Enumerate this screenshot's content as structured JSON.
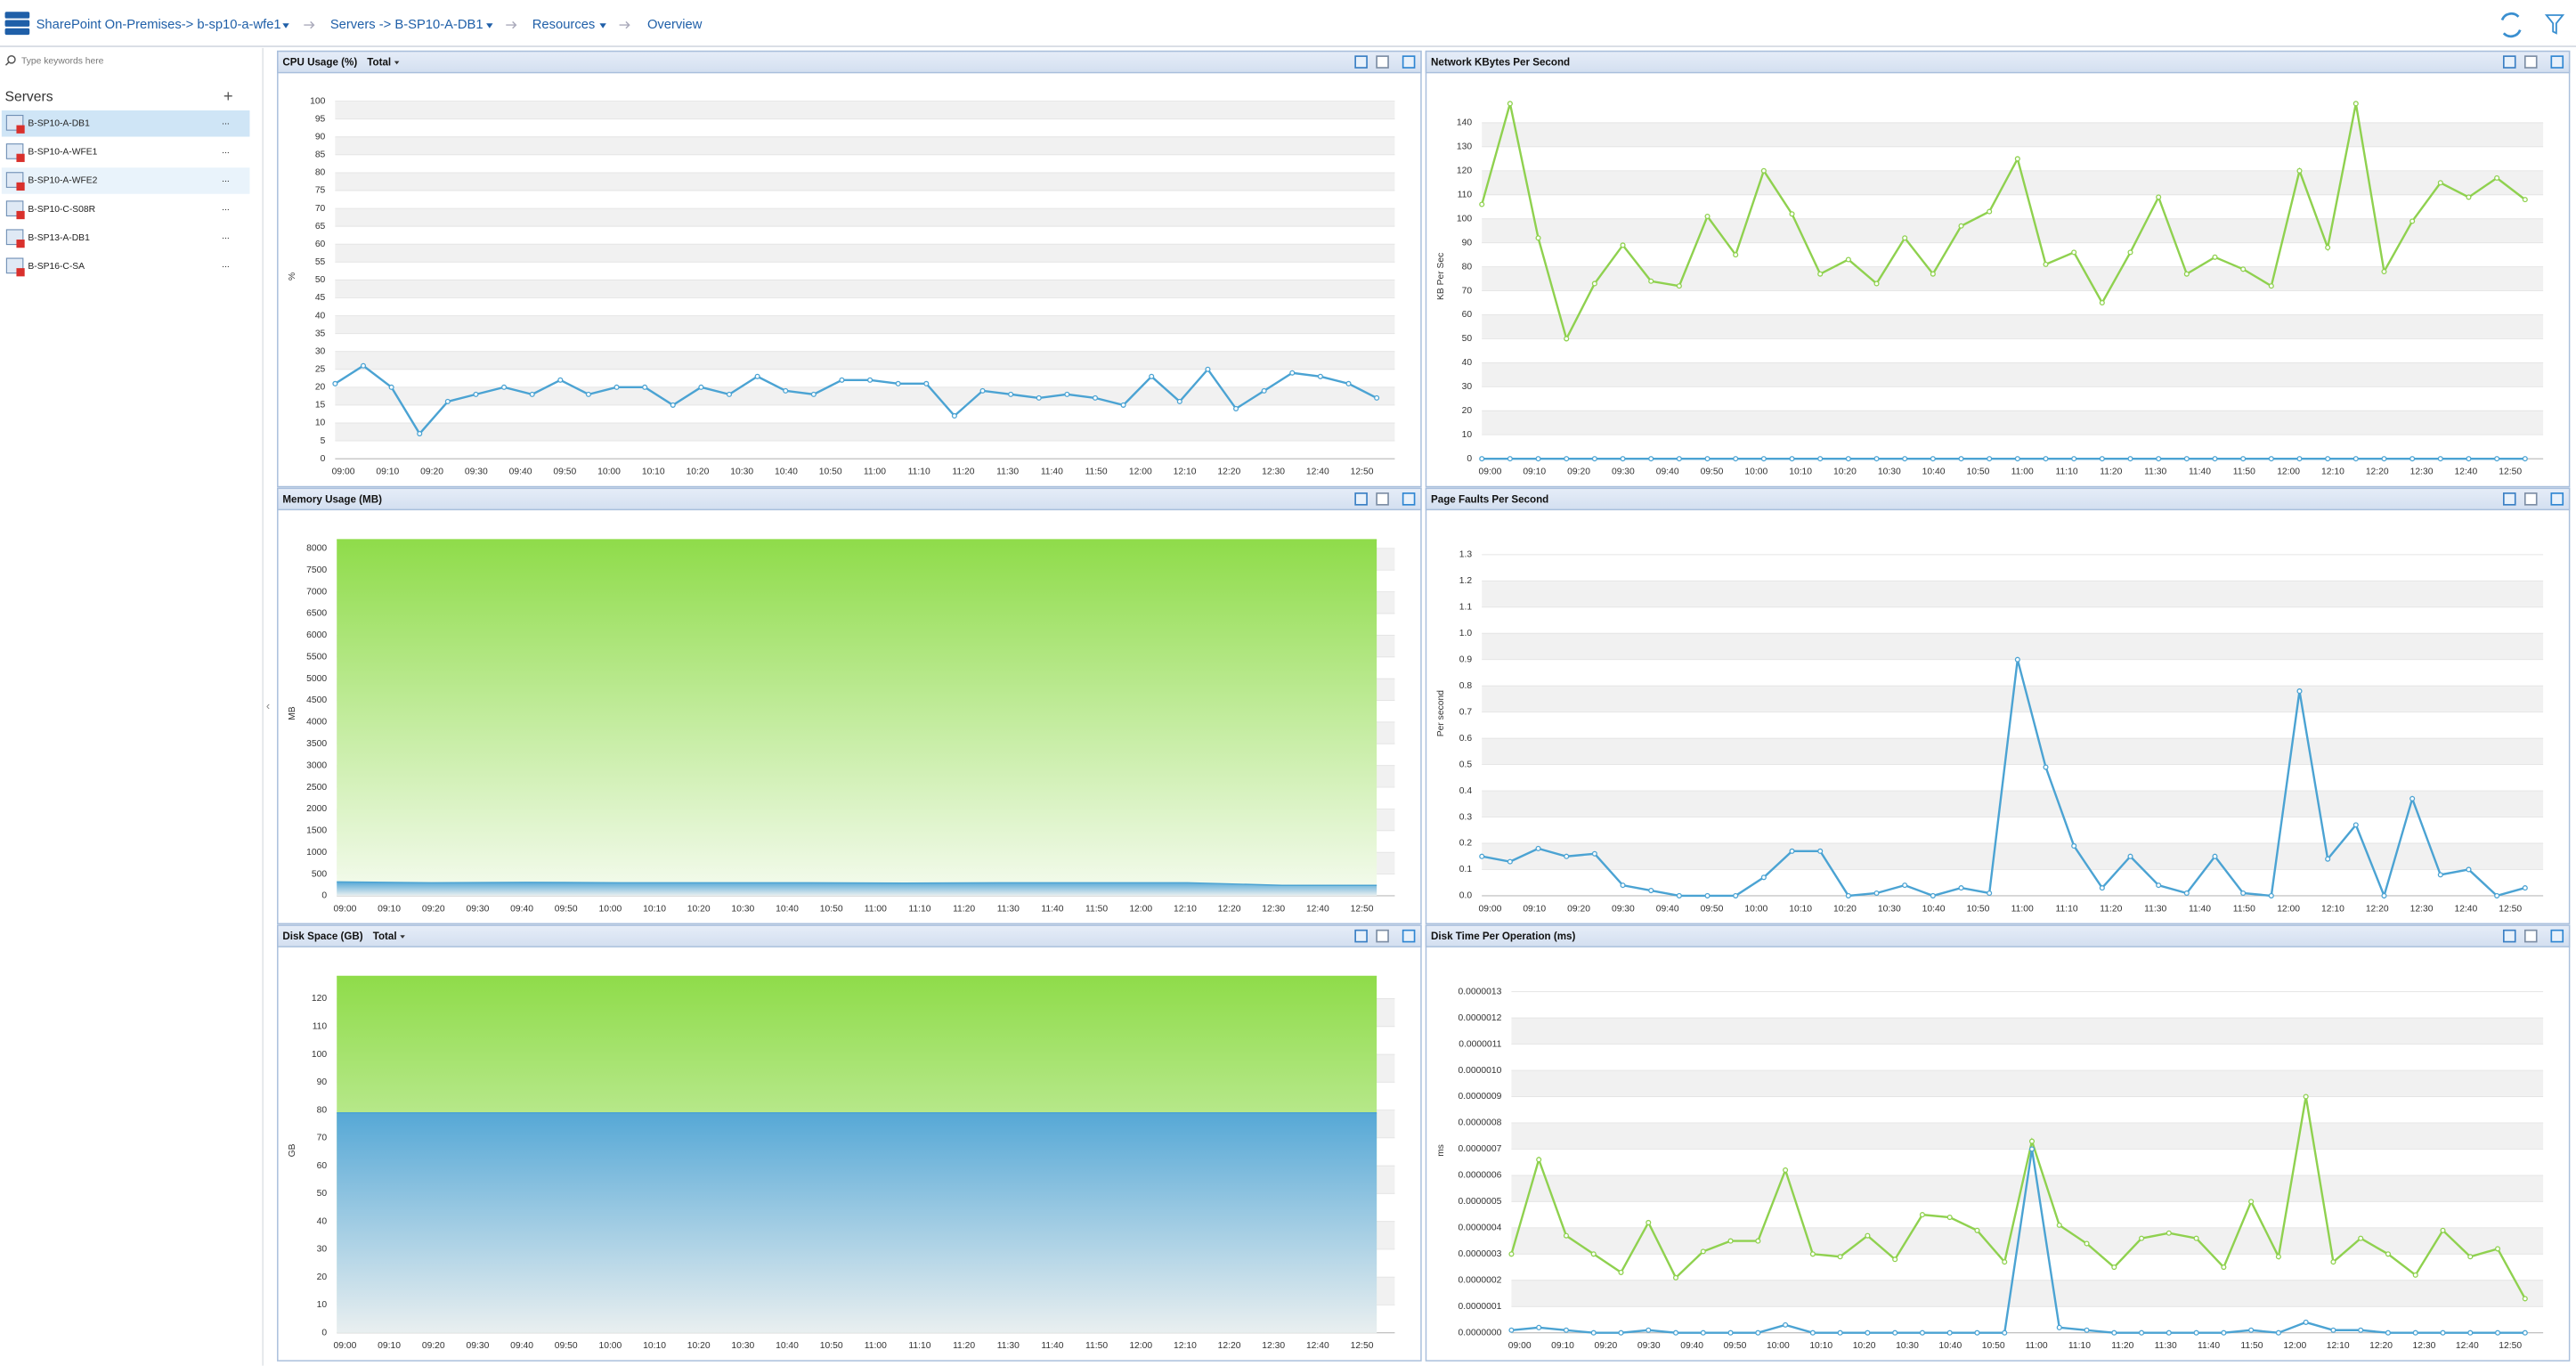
{
  "header": {
    "breadcrumbs": [
      "SharePoint On-Premises-> b-sp10-a-wfe1",
      "Servers -> B-SP10-A-DB1",
      "Resources",
      "Overview"
    ]
  },
  "sidebar": {
    "search_placeholder": "Type keywords here",
    "title": "Servers",
    "add": "+",
    "more": "...",
    "servers": [
      "B-SP10-A-DB1",
      "B-SP10-A-WFE1",
      "B-SP10-A-WFE2",
      "B-SP10-C-S08R",
      "B-SP13-A-DB1",
      "B-SP16-C-SA"
    ]
  },
  "time_labels": [
    "09:00",
    "09:10",
    "09:20",
    "09:30",
    "09:40",
    "09:50",
    "10:00",
    "10:10",
    "10:20",
    "10:30",
    "10:40",
    "10:50",
    "11:00",
    "11:10",
    "11:20",
    "11:30",
    "11:40",
    "11:50",
    "12:00",
    "12:10",
    "12:20",
    "12:30",
    "12:40",
    "12:50"
  ],
  "panels": [
    {
      "title": "CPU Usage (%)",
      "dropdown": "Total",
      "chart": {
        "type": "line",
        "y_label": "%",
        "ylim": [
          0,
          102
        ],
        "yticks": [
          0,
          5,
          10,
          15,
          20,
          25,
          30,
          35,
          40,
          45,
          50,
          55,
          60,
          65,
          70,
          75,
          80,
          85,
          90,
          95,
          100
        ],
        "series": [
          {
            "color": "#4ba3d3",
            "values": [
              21,
              26,
              20,
              7,
              16,
              18,
              20,
              18,
              22,
              18,
              20,
              20,
              15,
              20,
              18,
              23,
              19,
              18,
              22,
              22,
              21,
              21,
              12,
              19,
              18,
              17,
              18,
              17,
              15,
              23,
              16,
              25,
              14,
              19,
              24,
              23,
              21,
              17
            ]
          }
        ]
      }
    },
    {
      "title": "Network KBytes Per Second",
      "chart": {
        "type": "line",
        "y_label": "KB Per Sec",
        "ylim": [
          0,
          152
        ],
        "yticks": [
          0,
          10,
          20,
          30,
          40,
          50,
          60,
          70,
          80,
          90,
          100,
          110,
          120,
          130,
          140
        ],
        "series": [
          {
            "color": "#8fd14f",
            "values": [
              106,
              148,
              92,
              50,
              73,
              89,
              74,
              72,
              101,
              85,
              120,
              102,
              77,
              83,
              73,
              92,
              77,
              97,
              103,
              125,
              81,
              86,
              65,
              86,
              109,
              77,
              84,
              79,
              72,
              120,
              88,
              148,
              78,
              99,
              115,
              109,
              117,
              108
            ]
          },
          {
            "color": "#4ba3d3",
            "values": [
              0,
              0,
              0,
              0,
              0,
              0,
              0,
              0,
              0,
              0,
              0,
              0,
              0,
              0,
              0,
              0,
              0,
              0,
              0,
              0,
              0,
              0,
              0,
              0,
              0,
              0,
              0,
              0,
              0,
              0,
              0,
              0,
              0,
              0,
              0,
              0,
              0,
              0
            ]
          }
        ]
      }
    },
    {
      "title": "Memory Usage (MB)",
      "chart": {
        "type": "area",
        "y_label": "MB",
        "ylim": [
          0,
          8400
        ],
        "yticks": [
          0,
          500,
          1000,
          1500,
          2000,
          2500,
          3000,
          3500,
          4000,
          4500,
          5000,
          5500,
          6000,
          6500,
          7000,
          7500,
          8000
        ],
        "series": [
          {
            "color": "#8fdc4a",
            "values": [
              8200,
              8200,
              8200,
              8200,
              8200,
              8200,
              8200,
              8200,
              8200,
              8200,
              8200,
              8200
            ]
          },
          {
            "color": "#4ba3d3",
            "values": [
              320,
              300,
              310,
              300,
              300,
              300,
              290,
              300,
              300,
              300,
              240,
              240
            ]
          }
        ]
      }
    },
    {
      "title": "Page Faults Per Second",
      "chart": {
        "type": "line",
        "y_label": "Per second",
        "ylim": [
          0,
          1.39
        ],
        "yticks": [
          {
            "value": 0,
            "label": "0.0"
          },
          {
            "value": 0.1,
            "label": "0.1"
          },
          {
            "value": 0.2,
            "label": "0.2"
          },
          {
            "value": 0.3,
            "label": "0.3"
          },
          {
            "value": 0.4,
            "label": "0.4"
          },
          {
            "value": 0.5,
            "label": "0.5"
          },
          {
            "value": 0.6,
            "label": "0.6"
          },
          {
            "value": 0.7,
            "label": "0.7"
          },
          {
            "value": 0.8,
            "label": "0.8"
          },
          {
            "value": 0.9,
            "label": "0.9"
          },
          {
            "value": 1,
            "label": "1.0"
          },
          {
            "value": 1.1,
            "label": "1.1"
          },
          {
            "value": 1.2,
            "label": "1.2"
          },
          {
            "value": 1.3,
            "label": "1.3"
          }
        ],
        "series": [
          {
            "color": "#4ba3d3",
            "values": [
              0.15,
              0.13,
              0.18,
              0.15,
              0.16,
              0.04,
              0.02,
              0,
              0,
              0,
              0.07,
              0.17,
              0.17,
              0,
              0.01,
              0.04,
              0,
              0.03,
              0.01,
              0.9,
              0.49,
              0.19,
              0.03,
              0.15,
              0.04,
              0.01,
              0.15,
              0.01,
              0,
              0.78,
              0.14,
              0.27,
              0,
              0.37,
              0.08,
              0.1,
              0,
              0.03
            ]
          }
        ]
      }
    },
    {
      "title": "Disk Space (GB)",
      "dropdown": "Total",
      "chart": {
        "type": "area",
        "y_label": "GB",
        "ylim": [
          0,
          131
        ],
        "yticks": [
          0,
          10,
          20,
          30,
          40,
          50,
          60,
          70,
          80,
          90,
          100,
          110,
          120
        ],
        "series": [
          {
            "color": "#8fdc4a",
            "values": [
              128,
              128,
              128,
              128,
              128,
              128,
              128,
              128,
              128,
              128,
              128,
              128
            ]
          },
          {
            "color": "#4ba3d3",
            "values": [
              79,
              79,
              79,
              79,
              79,
              79,
              79,
              79,
              79,
              79,
              79,
              79
            ]
          }
        ]
      }
    },
    {
      "title": "Disk Time Per Operation (ms)",
      "chart": {
        "type": "line",
        "y_label": "ms",
        "ylim": [
          0,
          1.39e-06
        ],
        "yticks": [
          {
            "value": 0,
            "label": "0.0000000"
          },
          {
            "value": 1e-07,
            "label": "0.0000001"
          },
          {
            "value": 2e-07,
            "label": "0.0000002"
          },
          {
            "value": 3e-07,
            "label": "0.0000003"
          },
          {
            "value": 4e-07,
            "label": "0.0000004"
          },
          {
            "value": 5e-07,
            "label": "0.0000005"
          },
          {
            "value": 6e-07,
            "label": "0.0000006"
          },
          {
            "value": 7e-07,
            "label": "0.0000007"
          },
          {
            "value": 8e-07,
            "label": "0.0000008"
          },
          {
            "value": 9e-07,
            "label": "0.0000009"
          },
          {
            "value": 1e-06,
            "label": "0.0000010"
          },
          {
            "value": 1.1e-06,
            "label": "0.0000011"
          },
          {
            "value": 1.2e-06,
            "label": "0.0000012"
          },
          {
            "value": 1.3e-06,
            "label": "0.0000013"
          }
        ],
        "series": [
          {
            "color": "#8fd14f",
            "values": [
              3e-07,
              6.6e-07,
              3.7e-07,
              3e-07,
              2.3e-07,
              4.2e-07,
              2.1e-07,
              3.1e-07,
              3.5e-07,
              3.5e-07,
              6.2e-07,
              3e-07,
              2.9e-07,
              3.7e-07,
              2.8e-07,
              4.5e-07,
              4.4e-07,
              3.9e-07,
              2.7e-07,
              7.3e-07,
              4.1e-07,
              3.4e-07,
              2.5e-07,
              3.6e-07,
              3.8e-07,
              3.6e-07,
              2.5e-07,
              5e-07,
              2.9e-07,
              9e-07,
              2.7e-07,
              3.6e-07,
              3e-07,
              2.2e-07,
              3.9e-07,
              2.9e-07,
              3.2e-07,
              1.3e-07
            ]
          },
          {
            "color": "#4ba3d3",
            "values": [
              1e-08,
              2e-08,
              1e-08,
              0,
              0,
              1e-08,
              0,
              0,
              0,
              0,
              3e-08,
              0,
              0,
              0,
              0,
              0,
              0,
              0,
              0,
              7e-07,
              2e-08,
              1e-08,
              0,
              0,
              0,
              0,
              0,
              1e-08,
              0,
              4e-08,
              1e-08,
              1e-08,
              0,
              0,
              0,
              0,
              0,
              0
            ]
          }
        ]
      }
    }
  ]
}
